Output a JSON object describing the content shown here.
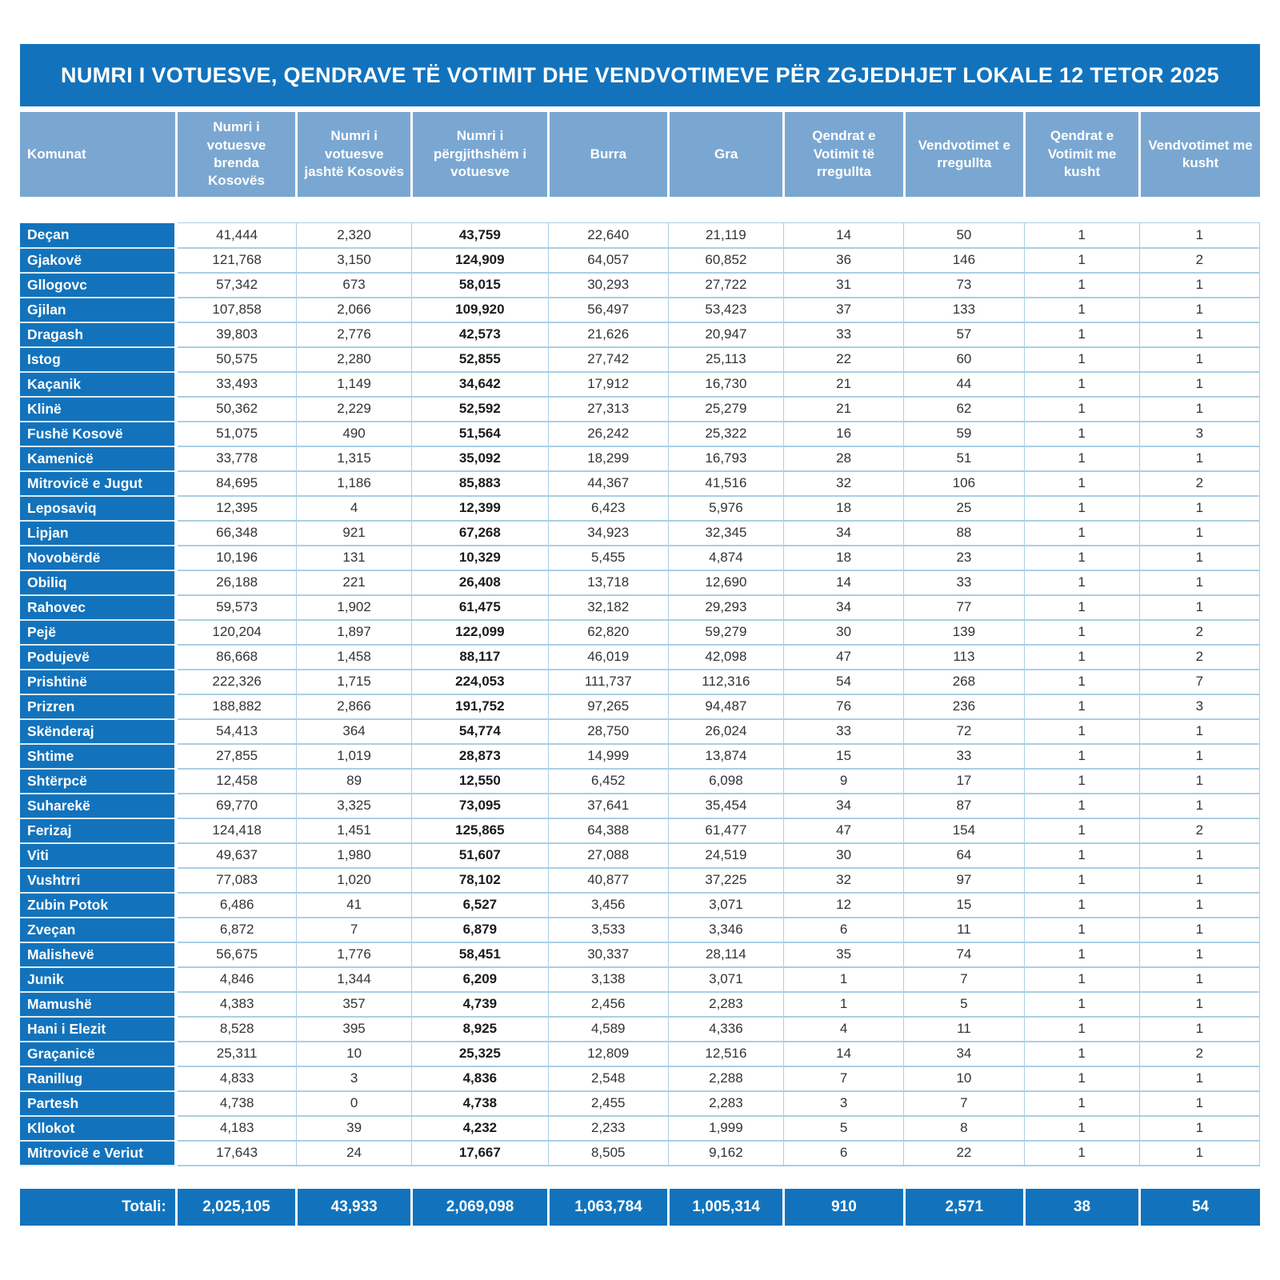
{
  "title": "NUMRI I VOTUESVE, QENDRAVE TË VOTIMIT DHE VENDVOTIMEVE PËR ZGJEDHJET LOKALE 12 TETOR 2025",
  "colors": {
    "dark_blue": "#1273BC",
    "header_blue": "#7AA7D1",
    "grid_line_blue": "#A9CFE5",
    "body_text": "#333333",
    "white": "#FFFFFF"
  },
  "chart_data": {
    "type": "table",
    "title": "NUMRI I VOTUESVE, QENDRAVE TË VOTIMIT DHE VENDVOTIMEVE PËR ZGJEDHJET LOKALE 12 TETOR 2025"
  },
  "table": {
    "columns": [
      "Komunat",
      "Numri i votuesve brenda Kosovës",
      "Numri i votuesve jashtë Kosovës",
      "Numri i përgjithshëm i votuesve",
      "Burra",
      "Gra",
      "Qendrat e Votimit të rregullta",
      "Vendvotimet e rregullta",
      "Qendrat e Votimit me kusht",
      "Vendvotimet me kusht"
    ],
    "bold_value_column_index": 2,
    "rows": [
      {
        "komuna": "Deçan",
        "values": [
          "41,444",
          "2,320",
          "43,759",
          "22,640",
          "21,119",
          "14",
          "50",
          "1",
          "1"
        ]
      },
      {
        "komuna": "Gjakovë",
        "values": [
          "121,768",
          "3,150",
          "124,909",
          "64,057",
          "60,852",
          "36",
          "146",
          "1",
          "2"
        ]
      },
      {
        "komuna": "Gllogovc",
        "values": [
          "57,342",
          "673",
          "58,015",
          "30,293",
          "27,722",
          "31",
          "73",
          "1",
          "1"
        ]
      },
      {
        "komuna": "Gjilan",
        "values": [
          "107,858",
          "2,066",
          "109,920",
          "56,497",
          "53,423",
          "37",
          "133",
          "1",
          "1"
        ]
      },
      {
        "komuna": "Dragash",
        "values": [
          "39,803",
          "2,776",
          "42,573",
          "21,626",
          "20,947",
          "33",
          "57",
          "1",
          "1"
        ]
      },
      {
        "komuna": "Istog",
        "values": [
          "50,575",
          "2,280",
          "52,855",
          "27,742",
          "25,113",
          "22",
          "60",
          "1",
          "1"
        ]
      },
      {
        "komuna": "Kaçanik",
        "values": [
          "33,493",
          "1,149",
          "34,642",
          "17,912",
          "16,730",
          "21",
          "44",
          "1",
          "1"
        ]
      },
      {
        "komuna": "Klinë",
        "values": [
          "50,362",
          "2,229",
          "52,592",
          "27,313",
          "25,279",
          "21",
          "62",
          "1",
          "1"
        ]
      },
      {
        "komuna": "Fushë Kosovë",
        "values": [
          "51,075",
          "490",
          "51,564",
          "26,242",
          "25,322",
          "16",
          "59",
          "1",
          "3"
        ]
      },
      {
        "komuna": "Kamenicë",
        "values": [
          "33,778",
          "1,315",
          "35,092",
          "18,299",
          "16,793",
          "28",
          "51",
          "1",
          "1"
        ]
      },
      {
        "komuna": "Mitrovicë e Jugut",
        "values": [
          "84,695",
          "1,186",
          "85,883",
          "44,367",
          "41,516",
          "32",
          "106",
          "1",
          "2"
        ]
      },
      {
        "komuna": "Leposaviq",
        "values": [
          "12,395",
          "4",
          "12,399",
          "6,423",
          "5,976",
          "18",
          "25",
          "1",
          "1"
        ]
      },
      {
        "komuna": "Lipjan",
        "values": [
          "66,348",
          "921",
          "67,268",
          "34,923",
          "32,345",
          "34",
          "88",
          "1",
          "1"
        ]
      },
      {
        "komuna": "Novobërdë",
        "values": [
          "10,196",
          "131",
          "10,329",
          "5,455",
          "4,874",
          "18",
          "23",
          "1",
          "1"
        ]
      },
      {
        "komuna": "Obiliq",
        "values": [
          "26,188",
          "221",
          "26,408",
          "13,718",
          "12,690",
          "14",
          "33",
          "1",
          "1"
        ]
      },
      {
        "komuna": "Rahovec",
        "values": [
          "59,573",
          "1,902",
          "61,475",
          "32,182",
          "29,293",
          "34",
          "77",
          "1",
          "1"
        ]
      },
      {
        "komuna": "Pejë",
        "values": [
          "120,204",
          "1,897",
          "122,099",
          "62,820",
          "59,279",
          "30",
          "139",
          "1",
          "2"
        ]
      },
      {
        "komuna": "Podujevë",
        "values": [
          "86,668",
          "1,458",
          "88,117",
          "46,019",
          "42,098",
          "47",
          "113",
          "1",
          "2"
        ]
      },
      {
        "komuna": "Prishtinë",
        "values": [
          "222,326",
          "1,715",
          "224,053",
          "111,737",
          "112,316",
          "54",
          "268",
          "1",
          "7"
        ]
      },
      {
        "komuna": "Prizren",
        "values": [
          "188,882",
          "2,866",
          "191,752",
          "97,265",
          "94,487",
          "76",
          "236",
          "1",
          "3"
        ]
      },
      {
        "komuna": "Skënderaj",
        "values": [
          "54,413",
          "364",
          "54,774",
          "28,750",
          "26,024",
          "33",
          "72",
          "1",
          "1"
        ]
      },
      {
        "komuna": "Shtime",
        "values": [
          "27,855",
          "1,019",
          "28,873",
          "14,999",
          "13,874",
          "15",
          "33",
          "1",
          "1"
        ]
      },
      {
        "komuna": "Shtërpcë",
        "values": [
          "12,458",
          "89",
          "12,550",
          "6,452",
          "6,098",
          "9",
          "17",
          "1",
          "1"
        ]
      },
      {
        "komuna": "Suharekë",
        "values": [
          "69,770",
          "3,325",
          "73,095",
          "37,641",
          "35,454",
          "34",
          "87",
          "1",
          "1"
        ]
      },
      {
        "komuna": "Ferizaj",
        "values": [
          "124,418",
          "1,451",
          "125,865",
          "64,388",
          "61,477",
          "47",
          "154",
          "1",
          "2"
        ]
      },
      {
        "komuna": "Viti",
        "values": [
          "49,637",
          "1,980",
          "51,607",
          "27,088",
          "24,519",
          "30",
          "64",
          "1",
          "1"
        ]
      },
      {
        "komuna": "Vushtrri",
        "values": [
          "77,083",
          "1,020",
          "78,102",
          "40,877",
          "37,225",
          "32",
          "97",
          "1",
          "1"
        ]
      },
      {
        "komuna": "Zubin Potok",
        "values": [
          "6,486",
          "41",
          "6,527",
          "3,456",
          "3,071",
          "12",
          "15",
          "1",
          "1"
        ]
      },
      {
        "komuna": "Zveçan",
        "values": [
          "6,872",
          "7",
          "6,879",
          "3,533",
          "3,346",
          "6",
          "11",
          "1",
          "1"
        ]
      },
      {
        "komuna": "Malishevë",
        "values": [
          "56,675",
          "1,776",
          "58,451",
          "30,337",
          "28,114",
          "35",
          "74",
          "1",
          "1"
        ]
      },
      {
        "komuna": "Junik",
        "values": [
          "4,846",
          "1,344",
          "6,209",
          "3,138",
          "3,071",
          "1",
          "7",
          "1",
          "1"
        ]
      },
      {
        "komuna": "Mamushë",
        "values": [
          "4,383",
          "357",
          "4,739",
          "2,456",
          "2,283",
          "1",
          "5",
          "1",
          "1"
        ]
      },
      {
        "komuna": "Hani i Elezit",
        "values": [
          "8,528",
          "395",
          "8,925",
          "4,589",
          "4,336",
          "4",
          "11",
          "1",
          "1"
        ]
      },
      {
        "komuna": "Graçanicë",
        "values": [
          "25,311",
          "10",
          "25,325",
          "12,809",
          "12,516",
          "14",
          "34",
          "1",
          "2"
        ]
      },
      {
        "komuna": "Ranillug",
        "values": [
          "4,833",
          "3",
          "4,836",
          "2,548",
          "2,288",
          "7",
          "10",
          "1",
          "1"
        ]
      },
      {
        "komuna": "Partesh",
        "values": [
          "4,738",
          "0",
          "4,738",
          "2,455",
          "2,283",
          "3",
          "7",
          "1",
          "1"
        ]
      },
      {
        "komuna": "Kllokot",
        "values": [
          "4,183",
          "39",
          "4,232",
          "2,233",
          "1,999",
          "5",
          "8",
          "1",
          "1"
        ]
      },
      {
        "komuna": "Mitrovicë e Veriut",
        "values": [
          "17,643",
          "24",
          "17,667",
          "8,505",
          "9,162",
          "6",
          "22",
          "1",
          "1"
        ]
      }
    ],
    "totals": {
      "label": "Totali:",
      "values": [
        "2,025,105",
        "43,933",
        "2,069,098",
        "1,063,784",
        "1,005,314",
        "910",
        "2,571",
        "38",
        "54"
      ]
    }
  }
}
